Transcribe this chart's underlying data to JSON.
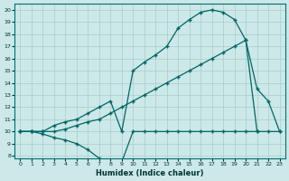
{
  "xlabel": "Humidex (Indice chaleur)",
  "bg_color": "#cce8e8",
  "grid_color": "#aacccc",
  "line_color": "#006666",
  "xmin": -0.5,
  "xmax": 23.5,
  "ymin": 7.8,
  "ymax": 20.5,
  "yticks": [
    8,
    9,
    10,
    11,
    12,
    13,
    14,
    15,
    16,
    17,
    18,
    19,
    20
  ],
  "xticks": [
    0,
    1,
    2,
    3,
    4,
    5,
    6,
    7,
    8,
    9,
    10,
    11,
    12,
    13,
    14,
    15,
    16,
    17,
    18,
    19,
    20,
    21,
    22,
    23
  ],
  "line1_x": [
    0,
    1,
    2,
    3,
    4,
    5,
    6,
    7,
    8,
    9,
    10,
    11,
    12,
    13,
    14,
    15,
    16,
    17,
    18,
    19,
    20,
    21,
    22,
    23
  ],
  "line1_y": [
    10,
    10,
    10,
    10.5,
    10.8,
    11.0,
    11.5,
    12.0,
    12.5,
    10.0,
    15.0,
    15.7,
    16.3,
    17.0,
    18.5,
    19.2,
    19.8,
    20.0,
    19.8,
    19.2,
    17.5,
    13.5,
    12.5,
    10.0
  ],
  "line2_x": [
    0,
    1,
    2,
    3,
    4,
    5,
    6,
    7,
    8,
    9,
    10,
    11,
    12,
    13,
    14,
    15,
    16,
    17,
    18,
    19,
    20,
    21
  ],
  "line2_y": [
    10,
    10,
    10,
    10,
    10.2,
    10.5,
    10.8,
    11.0,
    11.5,
    12.0,
    12.5,
    13.0,
    13.5,
    14.0,
    14.5,
    15.0,
    15.5,
    16.0,
    16.5,
    17.0,
    17.5,
    10.0
  ],
  "line3_x": [
    0,
    1,
    2,
    3,
    4,
    5,
    6,
    7,
    8,
    9,
    10,
    11,
    12,
    13,
    14,
    15,
    16,
    17,
    18,
    19,
    20,
    21,
    22,
    23
  ],
  "line3_y": [
    10,
    10,
    9.8,
    9.5,
    9.3,
    9.0,
    8.5,
    7.8,
    7.5,
    7.5,
    10.0,
    10.0,
    10.0,
    10.0,
    10.0,
    10.0,
    10.0,
    10.0,
    10.0,
    10.0,
    10.0,
    10.0,
    10.0,
    10.0
  ]
}
